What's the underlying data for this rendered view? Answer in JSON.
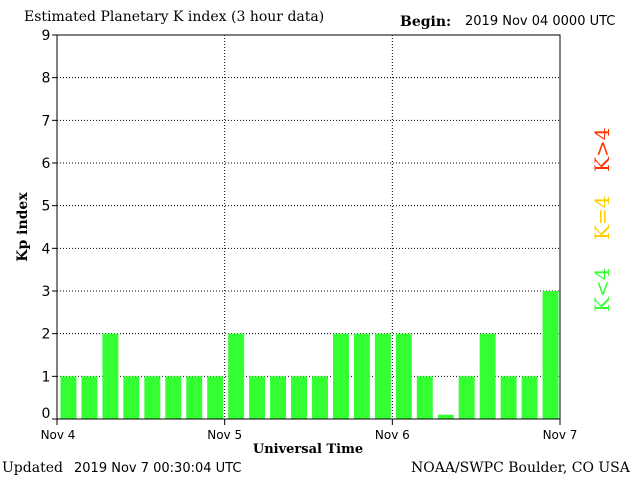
{
  "header": {
    "title": "Estimated Planetary K index (3 hour data)",
    "begin_label": "Begin:",
    "begin_value": "2019 Nov 04 0000 UTC"
  },
  "footer": {
    "updated_label": "Updated",
    "updated_value": "2019 Nov  7 00:30:04 UTC",
    "credit": "NOAA/SWPC Boulder, CO USA"
  },
  "legend": [
    {
      "label": "K>4",
      "color": "#ff3300"
    },
    {
      "label": "K=4",
      "color": "#ffcc00"
    },
    {
      "label": "K<4",
      "color": "#33ff33"
    }
  ],
  "chart_data": {
    "type": "bar",
    "title": "Estimated Planetary K index (3 hour data)",
    "xlabel": "Universal Time",
    "ylabel": "Kp index",
    "ylim": [
      0,
      9
    ],
    "yticks": [
      "0",
      "1",
      "2",
      "3",
      "4",
      "5",
      "6",
      "7",
      "8",
      "9"
    ],
    "xticks": [
      "Nov 4",
      "Nov 5",
      "Nov 6",
      "Nov 7"
    ],
    "grid": true,
    "bar_color": "#33ff33",
    "series": [
      {
        "values": [
          1,
          1,
          2,
          1,
          1,
          1,
          1,
          1,
          2,
          1,
          1,
          1,
          1,
          2,
          2,
          2,
          2,
          1,
          0.1,
          1,
          2,
          1,
          1,
          3
        ]
      }
    ]
  }
}
